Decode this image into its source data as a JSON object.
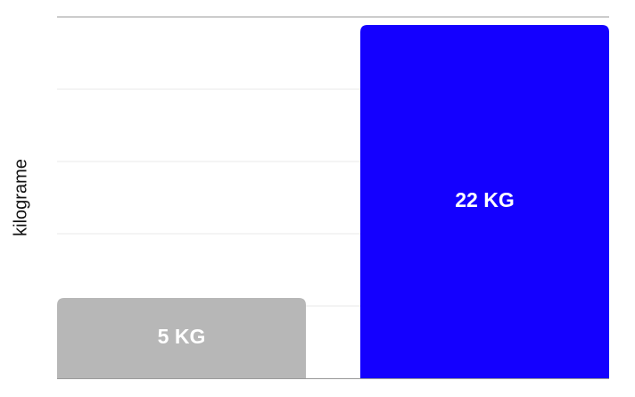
{
  "chart_data": {
    "type": "bar",
    "categories": [
      "",
      ""
    ],
    "values": [
      5,
      22
    ],
    "value_labels": [
      "5 KG",
      "22 KG"
    ],
    "bar_colors": [
      "#b7b7b7",
      "#1400ff"
    ],
    "ylabel": "kilograme",
    "xlabel": "",
    "ylim": [
      0,
      22
    ],
    "grid": true,
    "legend": "none"
  },
  "colors": {
    "gridline": "#e8e8e8",
    "axis": "#9a9a9a",
    "label": "#ffffff"
  }
}
